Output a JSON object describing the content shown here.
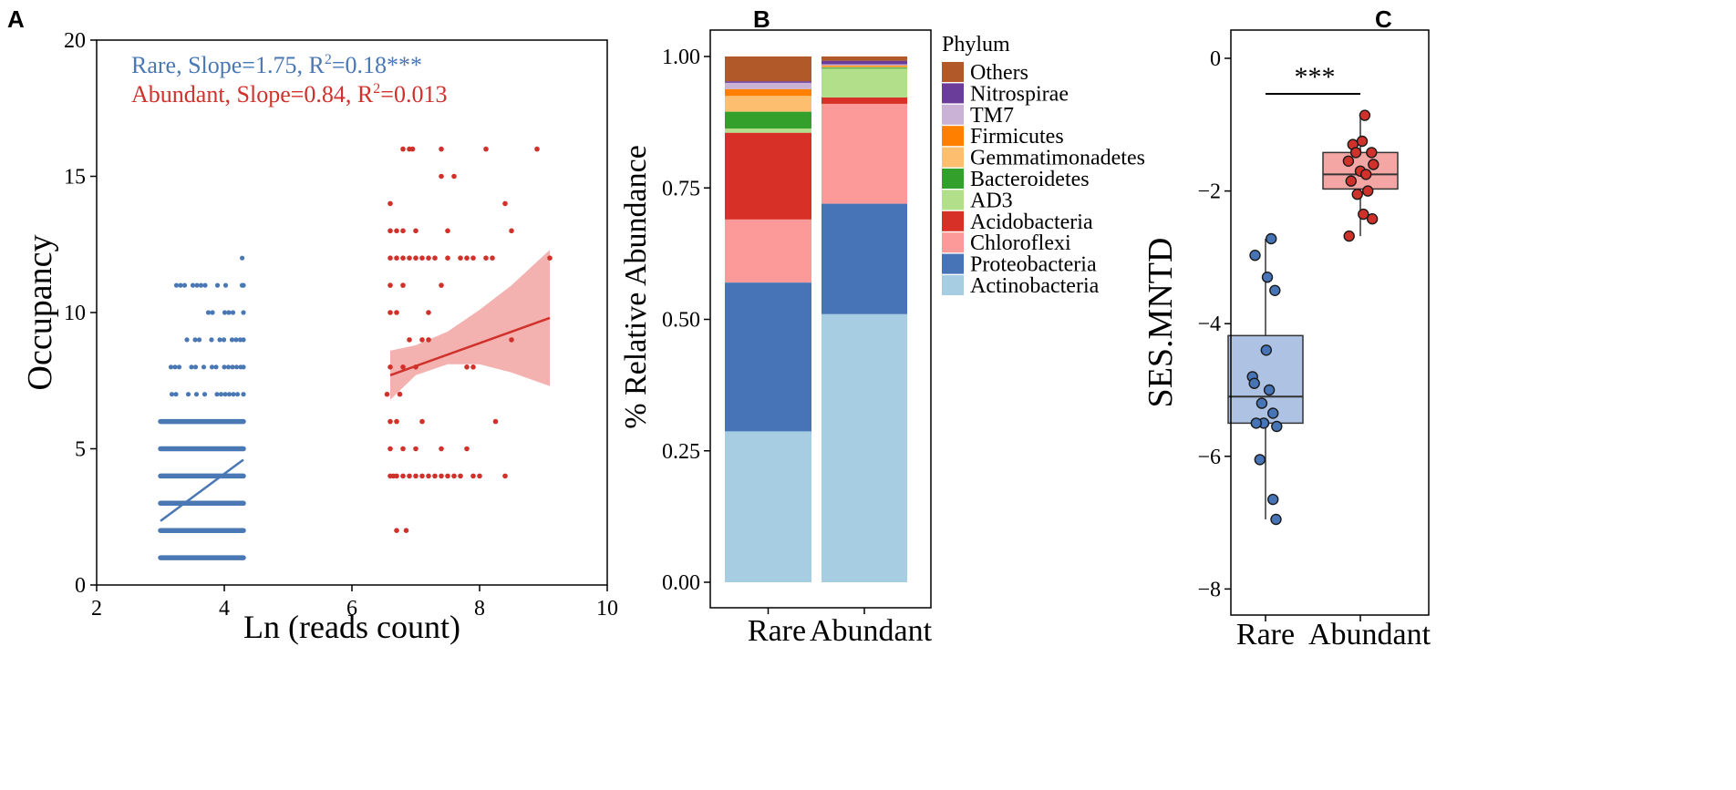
{
  "chart_data": [
    {
      "panel": "A",
      "type": "scatter",
      "xlabel": "Ln (reads count)",
      "ylabel": "Occupancy",
      "xlim": [
        2,
        10
      ],
      "ylim": [
        0,
        20
      ],
      "xticks": [
        "2",
        "4",
        "6",
        "8",
        "10"
      ],
      "yticks": [
        "0",
        "5",
        "10",
        "15",
        "20"
      ],
      "annotations": [
        {
          "label": "Rare, Slope=1.75, R",
          "sup": "2",
          "suffix": "=0.18***",
          "color": "#4a78b5"
        },
        {
          "label": "Abundant, Slope=0.84, R",
          "sup": "2",
          "suffix": "=0.013",
          "color": "#d0322b"
        }
      ],
      "series": [
        {
          "name": "Rare",
          "color": "#4a78b5",
          "x_range": [
            3.0,
            4.3
          ],
          "levels": [
            {
              "y": 1,
              "x": [
                3.0,
                4.3
              ],
              "solid": true
            },
            {
              "y": 2,
              "x": [
                3.0,
                4.3
              ],
              "solid": true
            },
            {
              "y": 3,
              "x": [
                3.0,
                4.3
              ],
              "solid": true
            },
            {
              "y": 4,
              "x": [
                3.0,
                4.3
              ],
              "solid": true
            },
            {
              "y": 5,
              "x": [
                3.0,
                4.3
              ],
              "solid": true
            },
            {
              "y": 6,
              "x": [
                3.0,
                4.3
              ],
              "solid": true
            },
            {
              "y": 7,
              "x": [
                3.05,
                4.3
              ],
              "solid": false
            },
            {
              "y": 8,
              "x": [
                3.1,
                4.3
              ],
              "solid": false
            },
            {
              "y": 9,
              "x": [
                3.35,
                4.3
              ],
              "solid": false
            },
            {
              "y": 10,
              "x": [
                3.75,
                4.3
              ],
              "solid": false
            },
            {
              "y": 11,
              "x": [
                3.25,
                4.3
              ],
              "solid": false
            },
            {
              "y": 12,
              "x": [
                4.28,
                4.28
              ],
              "solid": false
            }
          ],
          "fit": {
            "x": [
              3.0,
              4.3
            ],
            "y": [
              2.35,
              4.6
            ]
          }
        },
        {
          "name": "Abundant",
          "color": "#d0322b",
          "points": [
            [
              6.7,
              2
            ],
            [
              6.85,
              2
            ],
            [
              6.6,
              4
            ],
            [
              6.65,
              4
            ],
            [
              6.7,
              4
            ],
            [
              6.8,
              4
            ],
            [
              6.9,
              4
            ],
            [
              7.0,
              4
            ],
            [
              7.1,
              4
            ],
            [
              7.2,
              4
            ],
            [
              7.3,
              4
            ],
            [
              7.4,
              4
            ],
            [
              7.5,
              4
            ],
            [
              7.6,
              4
            ],
            [
              7.7,
              4
            ],
            [
              7.9,
              4
            ],
            [
              8.0,
              4
            ],
            [
              8.4,
              4
            ],
            [
              6.6,
              5
            ],
            [
              6.8,
              5
            ],
            [
              7.0,
              5
            ],
            [
              7.4,
              5
            ],
            [
              7.8,
              5
            ],
            [
              6.6,
              6
            ],
            [
              6.7,
              6
            ],
            [
              7.1,
              6
            ],
            [
              8.25,
              6
            ],
            [
              6.55,
              7
            ],
            [
              6.75,
              7
            ],
            [
              6.6,
              8
            ],
            [
              6.8,
              8
            ],
            [
              7.0,
              8
            ],
            [
              7.8,
              8
            ],
            [
              7.9,
              8
            ],
            [
              6.9,
              9
            ],
            [
              7.1,
              9
            ],
            [
              7.2,
              9
            ],
            [
              8.5,
              9
            ],
            [
              6.6,
              10
            ],
            [
              6.7,
              10
            ],
            [
              7.2,
              10
            ],
            [
              6.6,
              11
            ],
            [
              6.8,
              11
            ],
            [
              7.4,
              11
            ],
            [
              6.6,
              12
            ],
            [
              6.7,
              12
            ],
            [
              6.8,
              12
            ],
            [
              6.9,
              12
            ],
            [
              7.0,
              12
            ],
            [
              7.1,
              12
            ],
            [
              7.2,
              12
            ],
            [
              7.3,
              12
            ],
            [
              7.5,
              12
            ],
            [
              7.7,
              12
            ],
            [
              7.8,
              12
            ],
            [
              7.9,
              12
            ],
            [
              8.1,
              12
            ],
            [
              8.2,
              12
            ],
            [
              9.1,
              12
            ],
            [
              6.6,
              13
            ],
            [
              6.7,
              13
            ],
            [
              6.8,
              13
            ],
            [
              7.0,
              13
            ],
            [
              7.5,
              13
            ],
            [
              8.5,
              13
            ],
            [
              6.6,
              14
            ],
            [
              8.4,
              14
            ],
            [
              7.4,
              15
            ],
            [
              7.6,
              15
            ],
            [
              6.8,
              16
            ],
            [
              6.9,
              16
            ],
            [
              6.95,
              16
            ],
            [
              7.4,
              16
            ],
            [
              8.1,
              16
            ],
            [
              8.9,
              16
            ]
          ],
          "fit": {
            "x": [
              6.6,
              9.1
            ],
            "y": [
              7.7,
              9.8
            ]
          },
          "ci_upper": [
            [
              6.6,
              8.6
            ],
            [
              7.0,
              8.8
            ],
            [
              7.5,
              9.3
            ],
            [
              8.0,
              10.1
            ],
            [
              8.5,
              11.0
            ],
            [
              9.1,
              12.3
            ]
          ],
          "ci_lower": [
            [
              6.6,
              6.8
            ],
            [
              7.0,
              7.7
            ],
            [
              7.5,
              8.1
            ],
            [
              8.0,
              8.1
            ],
            [
              8.5,
              7.8
            ],
            [
              9.1,
              7.3
            ]
          ]
        }
      ]
    },
    {
      "panel": "B",
      "type": "bar",
      "stacked": true,
      "ylabel": "% Relative Abundance",
      "xlabel": "",
      "ylim": [
        0,
        1.0
      ],
      "yticks": [
        "0.00",
        "0.25",
        "0.50",
        "0.75",
        "1.00"
      ],
      "categories": [
        "Rare",
        "Abundant"
      ],
      "legend_title": "Phylum",
      "legend_position": "right",
      "series": [
        {
          "name": "Actinobacteria",
          "color": "#a6cde1",
          "values": [
            0.287,
            0.51
          ]
        },
        {
          "name": "Proteobacteria",
          "color": "#4674b6",
          "values": [
            0.283,
            0.21
          ]
        },
        {
          "name": "Chloroflexi",
          "color": "#fb9a99",
          "values": [
            0.12,
            0.19
          ]
        },
        {
          "name": "Acidobacteria",
          "color": "#d73027",
          "values": [
            0.165,
            0.012
          ]
        },
        {
          "name": "AD3",
          "color": "#b2df8a",
          "values": [
            0.008,
            0.055
          ]
        },
        {
          "name": "Bacteroidetes",
          "color": "#33a02c",
          "values": [
            0.032,
            0.002
          ]
        },
        {
          "name": "Gemmatimonadetes",
          "color": "#fdbf6f",
          "values": [
            0.03,
            0.002
          ]
        },
        {
          "name": "Firmicutes",
          "color": "#ff7f00",
          "values": [
            0.013,
            0.002
          ]
        },
        {
          "name": "TM7",
          "color": "#cab2d6",
          "values": [
            0.012,
            0.002
          ]
        },
        {
          "name": "Nitrospirae",
          "color": "#6a3d9a",
          "values": [
            0.003,
            0.007
          ]
        },
        {
          "name": "Others",
          "color": "#b15928",
          "values": [
            0.047,
            0.008
          ]
        }
      ]
    },
    {
      "panel": "C",
      "type": "box",
      "ylabel": "SES.MNTD",
      "xlabel": "",
      "ylim": [
        -8.5,
        0.2
      ],
      "yticks": [
        "0",
        "−2",
        "−4",
        "−6",
        "−8"
      ],
      "categories": [
        "Rare",
        "Abundant"
      ],
      "significance": "***",
      "series": [
        {
          "name": "Rare",
          "fill": "#aec3e3",
          "point_color": "#4674b6",
          "box": {
            "q1": -5.5,
            "median": -5.1,
            "q3": -4.18,
            "whisker_low": -6.95,
            "whisker_high": -2.72
          },
          "points": [
            [
              0.15,
              -2.72
            ],
            [
              -0.28,
              -2.97
            ],
            [
              0.05,
              -3.3
            ],
            [
              0.25,
              -3.5
            ],
            [
              0.02,
              -4.4
            ],
            [
              -0.35,
              -4.8
            ],
            [
              -0.3,
              -4.9
            ],
            [
              0.1,
              -5.0
            ],
            [
              -0.1,
              -5.2
            ],
            [
              0.2,
              -5.35
            ],
            [
              -0.05,
              -5.5
            ],
            [
              -0.25,
              -5.5
            ],
            [
              0.3,
              -5.55
            ],
            [
              -0.15,
              -6.05
            ],
            [
              0.2,
              -6.65
            ],
            [
              0.28,
              -6.95
            ]
          ]
        },
        {
          "name": "Abundant",
          "fill": "#f4a6a4",
          "point_color": "#d0322b",
          "box": {
            "q1": -1.97,
            "median": -1.75,
            "q3": -1.42,
            "whisker_low": -2.68,
            "whisker_high": -0.86
          },
          "points": [
            [
              0.12,
              -0.86
            ],
            [
              0.05,
              -1.25
            ],
            [
              -0.2,
              -1.3
            ],
            [
              -0.12,
              -1.42
            ],
            [
              0.3,
              -1.42
            ],
            [
              -0.32,
              -1.55
            ],
            [
              0.35,
              -1.6
            ],
            [
              0.0,
              -1.7
            ],
            [
              0.15,
              -1.75
            ],
            [
              -0.25,
              -1.85
            ],
            [
              0.2,
              -2.0
            ],
            [
              -0.08,
              -2.05
            ],
            [
              0.08,
              -2.35
            ],
            [
              0.32,
              -2.42
            ],
            [
              -0.3,
              -2.68
            ]
          ]
        }
      ]
    }
  ]
}
